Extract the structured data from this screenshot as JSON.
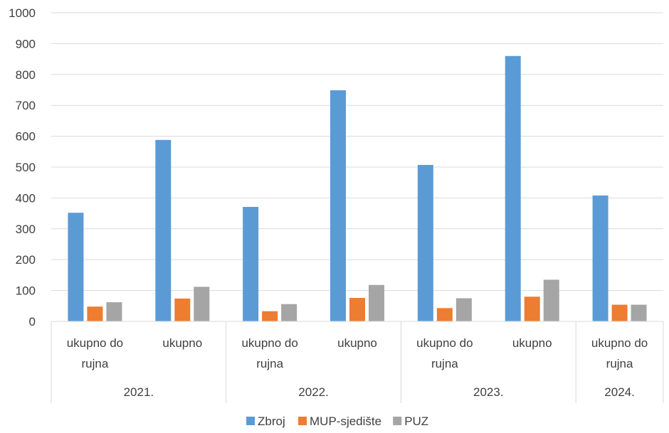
{
  "chart_data": {
    "type": "bar",
    "title": "",
    "xlabel": "",
    "ylabel": "",
    "ylim": [
      0,
      1000
    ],
    "yticks": [
      0,
      100,
      200,
      300,
      400,
      500,
      600,
      700,
      800,
      900,
      1000
    ],
    "grid": true,
    "legend_position": "bottom",
    "categories": [
      {
        "label": [
          "ukupno do",
          "rujna"
        ],
        "group": "2021."
      },
      {
        "label": [
          "ukupno"
        ],
        "group": "2021."
      },
      {
        "label": [
          "ukupno do",
          "rujna"
        ],
        "group": "2022."
      },
      {
        "label": [
          "ukupno"
        ],
        "group": "2022."
      },
      {
        "label": [
          "ukupno do",
          "rujna"
        ],
        "group": "2023."
      },
      {
        "label": [
          "ukupno"
        ],
        "group": "2023."
      },
      {
        "label": [
          "ukupno do",
          "rujna"
        ],
        "group": "2024."
      }
    ],
    "groups": [
      "2021.",
      "2022.",
      "2023.",
      "2024."
    ],
    "series": [
      {
        "name": "Zbroj",
        "color": "#5B9BD5",
        "values": [
          352,
          588,
          371,
          749,
          507,
          860,
          408
        ]
      },
      {
        "name": "MUP-sjedište",
        "color": "#ED7D31",
        "values": [
          48,
          74,
          33,
          76,
          43,
          80,
          54
        ]
      },
      {
        "name": "PUZ",
        "color": "#A5A5A5",
        "values": [
          62,
          112,
          56,
          118,
          75,
          135,
          54
        ]
      }
    ]
  }
}
